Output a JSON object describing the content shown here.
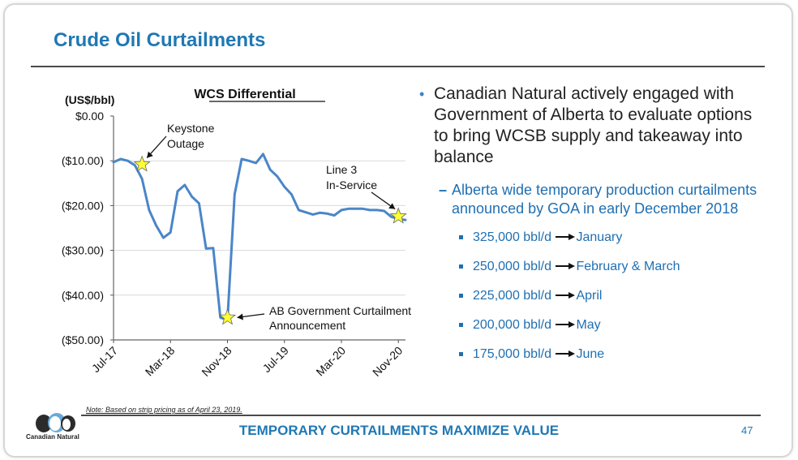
{
  "slide": {
    "title": "Crude Oil Curtailments",
    "footer": "TEMPORARY CURTAILMENTS MAXIMIZE VALUE",
    "page_number": "47",
    "note": "Note: Based on strip pricing as of April 23, 2019.",
    "logo_text": "Canadian Natural"
  },
  "bullets": {
    "main": "Canadian Natural actively engaged with Government of Alberta to evaluate options to bring WCSB supply and takeaway into balance",
    "sub": "Alberta wide temporary production curtailments announced by GOA in early December 2018",
    "items": [
      {
        "volume": "325,000 bbl/d",
        "period": "January"
      },
      {
        "volume": "250,000 bbl/d",
        "period": "February & March"
      },
      {
        "volume": "225,000 bbl/d",
        "period": "April"
      },
      {
        "volume": "200,000 bbl/d",
        "period": "May"
      },
      {
        "volume": "175,000 bbl/d",
        "period": "June"
      }
    ]
  },
  "colors": {
    "title": "#1f78b4",
    "line": "#4a86c8",
    "star_fill": "#ffff33",
    "star_stroke": "#666666",
    "grid": "#d9d9d9"
  },
  "chart_data": {
    "type": "line",
    "title": "WCS Differential",
    "ylabel": "(US$/bbl)",
    "xlabel": "",
    "ylim": [
      -50,
      0
    ],
    "y_ticks": [
      0,
      -10,
      -20,
      -30,
      -40,
      -50
    ],
    "y_tick_labels": [
      "$0.00",
      "($10.00)",
      "($20.00)",
      "($30.00)",
      "($40.00)",
      "($50.00)"
    ],
    "x_tick_labels": [
      "Jul-17",
      "Mar-18",
      "Nov-18",
      "Jul-19",
      "Mar-20",
      "Nov-20"
    ],
    "x_ticks": [
      "2017-07",
      "2018-03",
      "2018-11",
      "2019-07",
      "2020-03",
      "2020-11"
    ],
    "x_range": [
      "2017-07",
      "2020-12"
    ],
    "grid": true,
    "series": [
      {
        "x": [
          "2017-07",
          "2017-08",
          "2017-09",
          "2017-10",
          "2017-11",
          "2017-12",
          "2018-01",
          "2018-02",
          "2018-03",
          "2018-04",
          "2018-05",
          "2018-06",
          "2018-07",
          "2018-08",
          "2018-09",
          "2018-10",
          "2018-11",
          "2018-12",
          "2019-01",
          "2019-02",
          "2019-03",
          "2019-04",
          "2019-05",
          "2019-06",
          "2019-07",
          "2019-08",
          "2019-09",
          "2019-10",
          "2019-11",
          "2019-12",
          "2020-01",
          "2020-02",
          "2020-03",
          "2020-04",
          "2020-05",
          "2020-06",
          "2020-07",
          "2020-08",
          "2020-09",
          "2020-10",
          "2020-11",
          "2020-12"
        ],
        "values": [
          -10.3,
          -9.6,
          -10.0,
          -11.0,
          -14.0,
          -21.0,
          -24.5,
          -27.2,
          -26.0,
          -16.8,
          -15.4,
          -18.0,
          -19.5,
          -29.6,
          -29.5,
          -45.0,
          -45.5,
          -17.5,
          -9.6,
          -10.0,
          -10.5,
          -8.5,
          -12.0,
          -13.5,
          -15.8,
          -17.5,
          -21.0,
          -21.5,
          -22.0,
          -21.6,
          -21.8,
          -22.2,
          -21.0,
          -20.7,
          -20.7,
          -20.7,
          -21.0,
          -21.0,
          -21.2,
          -22.5,
          -23.0,
          -23.2
        ]
      }
    ],
    "annotations": [
      {
        "label": "Keystone Outage",
        "x": "2017-11",
        "y": -10.8
      },
      {
        "label": "AB Government Curtailment Announcement",
        "x": "2018-11",
        "y": -45.0
      },
      {
        "label": "Line 3 In-Service",
        "x": "2020-11",
        "y": -22.4
      }
    ]
  }
}
